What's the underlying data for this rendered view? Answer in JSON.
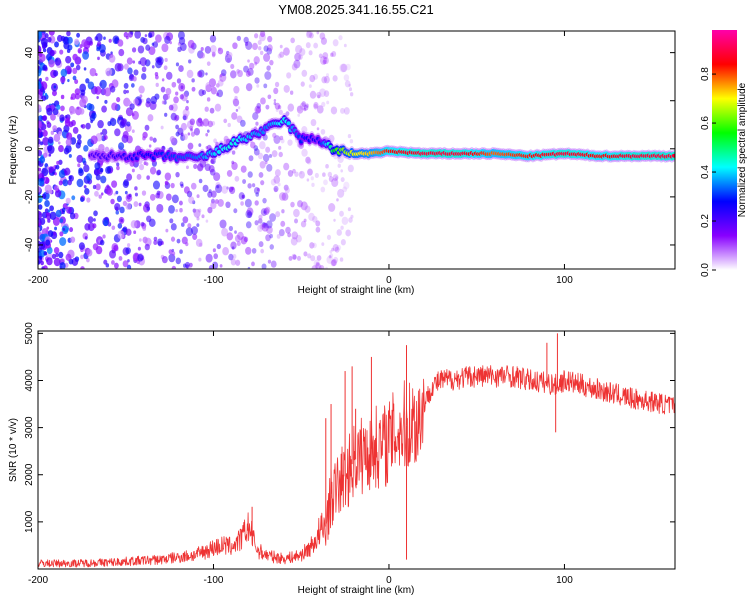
{
  "figure_title": "YM08.2025.341.16.55.C21",
  "colormap": {
    "stops": [
      "#ffffff",
      "#8800ff",
      "#0000ff",
      "#00ffff",
      "#00ff00",
      "#ffff00",
      "#ff0000",
      "#ff00aa"
    ]
  },
  "chart_data": [
    {
      "type": "heatmap",
      "title": "YM08.2025.341.16.55.C21",
      "xlabel": "Height of straight line (km)",
      "ylabel": "Frequency (Hz)",
      "xlim": [
        -200,
        163
      ],
      "ylim": [
        -50,
        49
      ],
      "xticks": [
        -200,
        -100,
        0,
        100
      ],
      "xtick_labels": [
        "-200",
        "-100",
        "0",
        "100"
      ],
      "yticks": [
        -40,
        -20,
        0,
        20,
        40
      ],
      "ytick_labels": [
        "-40",
        "-20",
        "0",
        "20",
        "40"
      ],
      "ridge": {
        "x": [
          -170,
          -150,
          -130,
          -110,
          -100,
          -90,
          -80,
          -70,
          -60,
          -50,
          -40,
          -30,
          -20,
          -10,
          0,
          20,
          40,
          60,
          80,
          100,
          120,
          140,
          163
        ],
        "freq": [
          -3,
          -3,
          -3,
          -4,
          -2,
          2,
          5,
          8,
          12,
          4,
          4,
          -1,
          -2,
          -2,
          -1,
          -2,
          -2,
          -2,
          -3,
          -2,
          -3,
          -3,
          -3
        ],
        "amplitude": [
          0.2,
          0.25,
          0.3,
          0.35,
          0.4,
          0.45,
          0.4,
          0.35,
          0.45,
          0.3,
          0.25,
          0.6,
          0.7,
          0.75,
          0.85,
          0.9,
          0.9,
          0.8,
          0.85,
          0.9,
          0.85,
          0.9,
          0.9
        ]
      },
      "noise_region_x": [
        -200,
        -20
      ],
      "colorbar": {
        "label": "Normalized spectral amplitude",
        "range": [
          0.0,
          0.98
        ],
        "ticks": [
          0.0,
          0.2,
          0.4,
          0.6,
          0.8
        ],
        "tick_labels": [
          "0.0",
          "0.2",
          "0.4",
          "0.6",
          "0.8"
        ]
      }
    },
    {
      "type": "line",
      "xlabel": "Height of straight line (km)",
      "ylabel": "SNR (10 * v/v)",
      "xlim": [
        -200,
        163
      ],
      "ylim": [
        0,
        5050
      ],
      "xticks": [
        -200,
        -100,
        0,
        100
      ],
      "xtick_labels": [
        "-200",
        "-100",
        "0",
        "100"
      ],
      "yticks": [
        1000,
        2000,
        3000,
        4000,
        5000
      ],
      "ytick_labels": [
        "1000",
        "2000",
        "3000",
        "4000",
        "5000"
      ],
      "series": [
        {
          "name": "SNR",
          "color": "#ee3333",
          "x": [
            -200,
            -180,
            -160,
            -140,
            -130,
            -120,
            -110,
            -100,
            -95,
            -90,
            -85,
            -80,
            -75,
            -70,
            -65,
            -60,
            -55,
            -50,
            -45,
            -40,
            -36,
            -33,
            -30,
            -27,
            -24,
            -20,
            -16,
            -12,
            -8,
            -4,
            0,
            4,
            8,
            12,
            16,
            20,
            25,
            30,
            40,
            50,
            60,
            70,
            80,
            90,
            95,
            100,
            110,
            120,
            130,
            140,
            150,
            163
          ],
          "y": [
            120,
            120,
            140,
            180,
            200,
            250,
            300,
            450,
            500,
            480,
            600,
            900,
            400,
            300,
            250,
            220,
            250,
            300,
            450,
            700,
            900,
            1500,
            1700,
            1900,
            2000,
            2300,
            2400,
            2500,
            2600,
            2600,
            2700,
            2900,
            3000,
            3100,
            3100,
            3500,
            3900,
            4000,
            4050,
            4100,
            4100,
            4100,
            4000,
            3950,
            3900,
            4000,
            3900,
            3800,
            3700,
            3600,
            3550,
            3450
          ],
          "spikes": [
            {
              "x": -78,
              "y": 1320
            },
            {
              "x": -36,
              "y": 3200
            },
            {
              "x": -33,
              "y": 3500
            },
            {
              "x": -25,
              "y": 4200
            },
            {
              "x": -21,
              "y": 4300
            },
            {
              "x": -19,
              "y": 3400
            },
            {
              "x": -10,
              "y": 4500
            },
            {
              "x": 10,
              "y": 4750
            },
            {
              "x": 10,
              "y": 200
            },
            {
              "x": 90,
              "y": 4800
            },
            {
              "x": 95,
              "y": 2900
            },
            {
              "x": 96,
              "y": 5000
            }
          ]
        }
      ]
    }
  ]
}
